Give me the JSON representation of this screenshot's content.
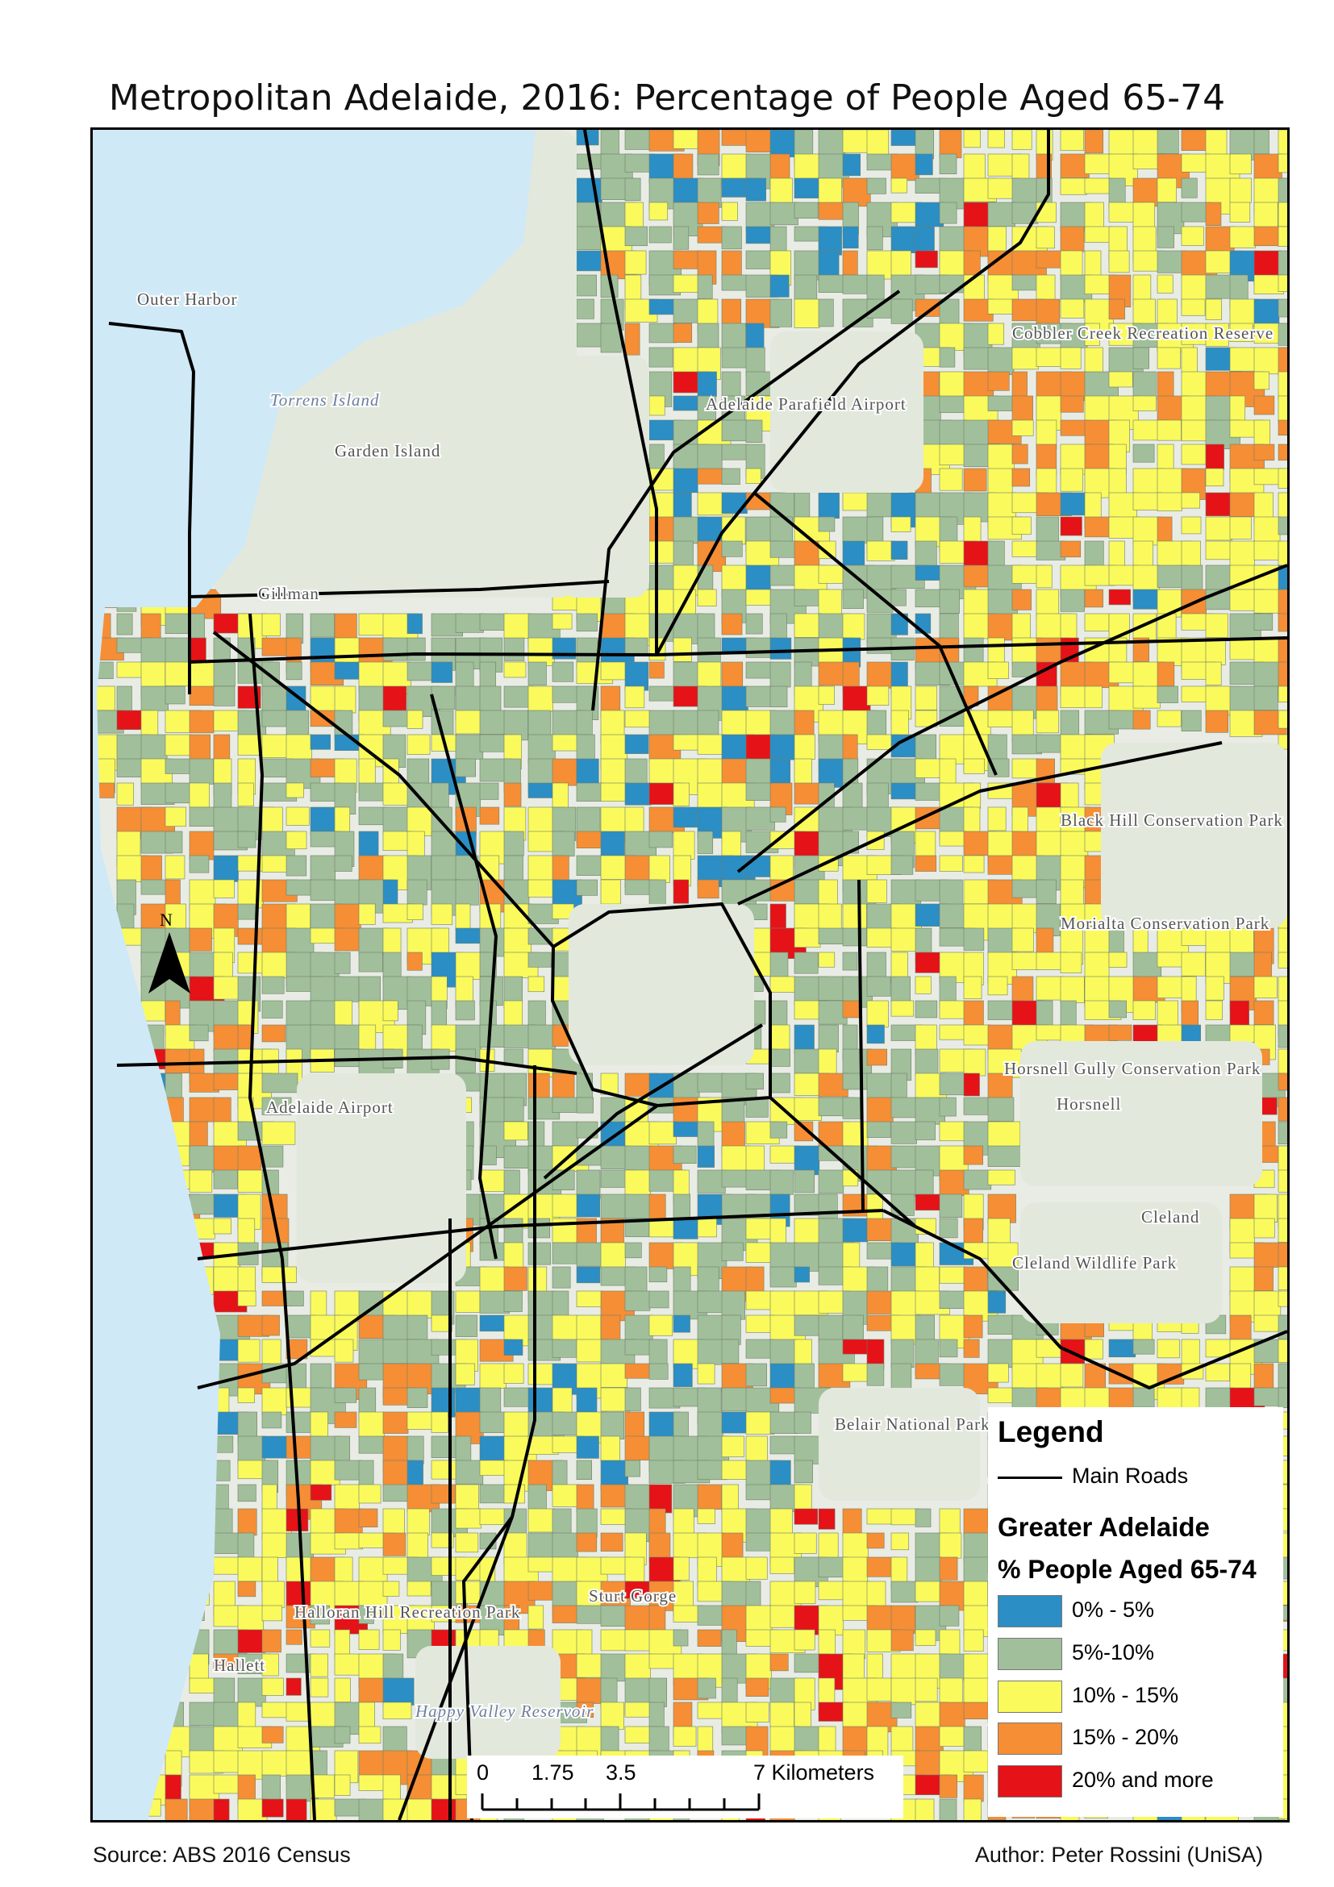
{
  "title": "Metropolitan Adelaide, 2016: Percentage of People Aged 65-74",
  "legend": {
    "heading": "Legend",
    "road_label": "Main Roads",
    "layer_title": "Greater Adelaide",
    "field_title": "% People Aged 65-74",
    "classes": [
      {
        "label": "0% - 5%",
        "color": "#2b8ec4"
      },
      {
        "label": "5%-10%",
        "color": "#a1bf9b"
      },
      {
        "label": "10% - 15%",
        "color": "#fafa5c"
      },
      {
        "label": "15% - 20%",
        "color": "#f68e35"
      },
      {
        "label": "20%  and more",
        "color": "#e51217"
      }
    ]
  },
  "scale_bar": {
    "ticks": [
      "0",
      "1.75",
      "3.5",
      "7 Kilometers"
    ]
  },
  "north_arrow": {
    "label": "N"
  },
  "map": {
    "water_color": "#cfe9f7",
    "park_color": "#e2e8dc",
    "road_color": "#000000",
    "place_labels": [
      "Outer Harbor",
      "Torrens Island",
      "Garden Island",
      "Gillman",
      "Adelaide Parafield Airport",
      "Cobbler Creek Recreation Reserve",
      "Black Hill Conservation Park",
      "Morialta Conservation Park",
      "Horsnell Gully Conservation Park",
      "Horsnell",
      "Cleland",
      "Cleland Wildlife Park",
      "Belair National Park",
      "Sturt Gorge",
      "Halloran Hill Recreation Park",
      "Hallett",
      "Happy Valley Reservoir",
      "Adelaide Airport"
    ]
  },
  "footer": {
    "source": "Source: ABS 2016 Census",
    "author": "Author: Peter Rossini (UniSA)"
  }
}
